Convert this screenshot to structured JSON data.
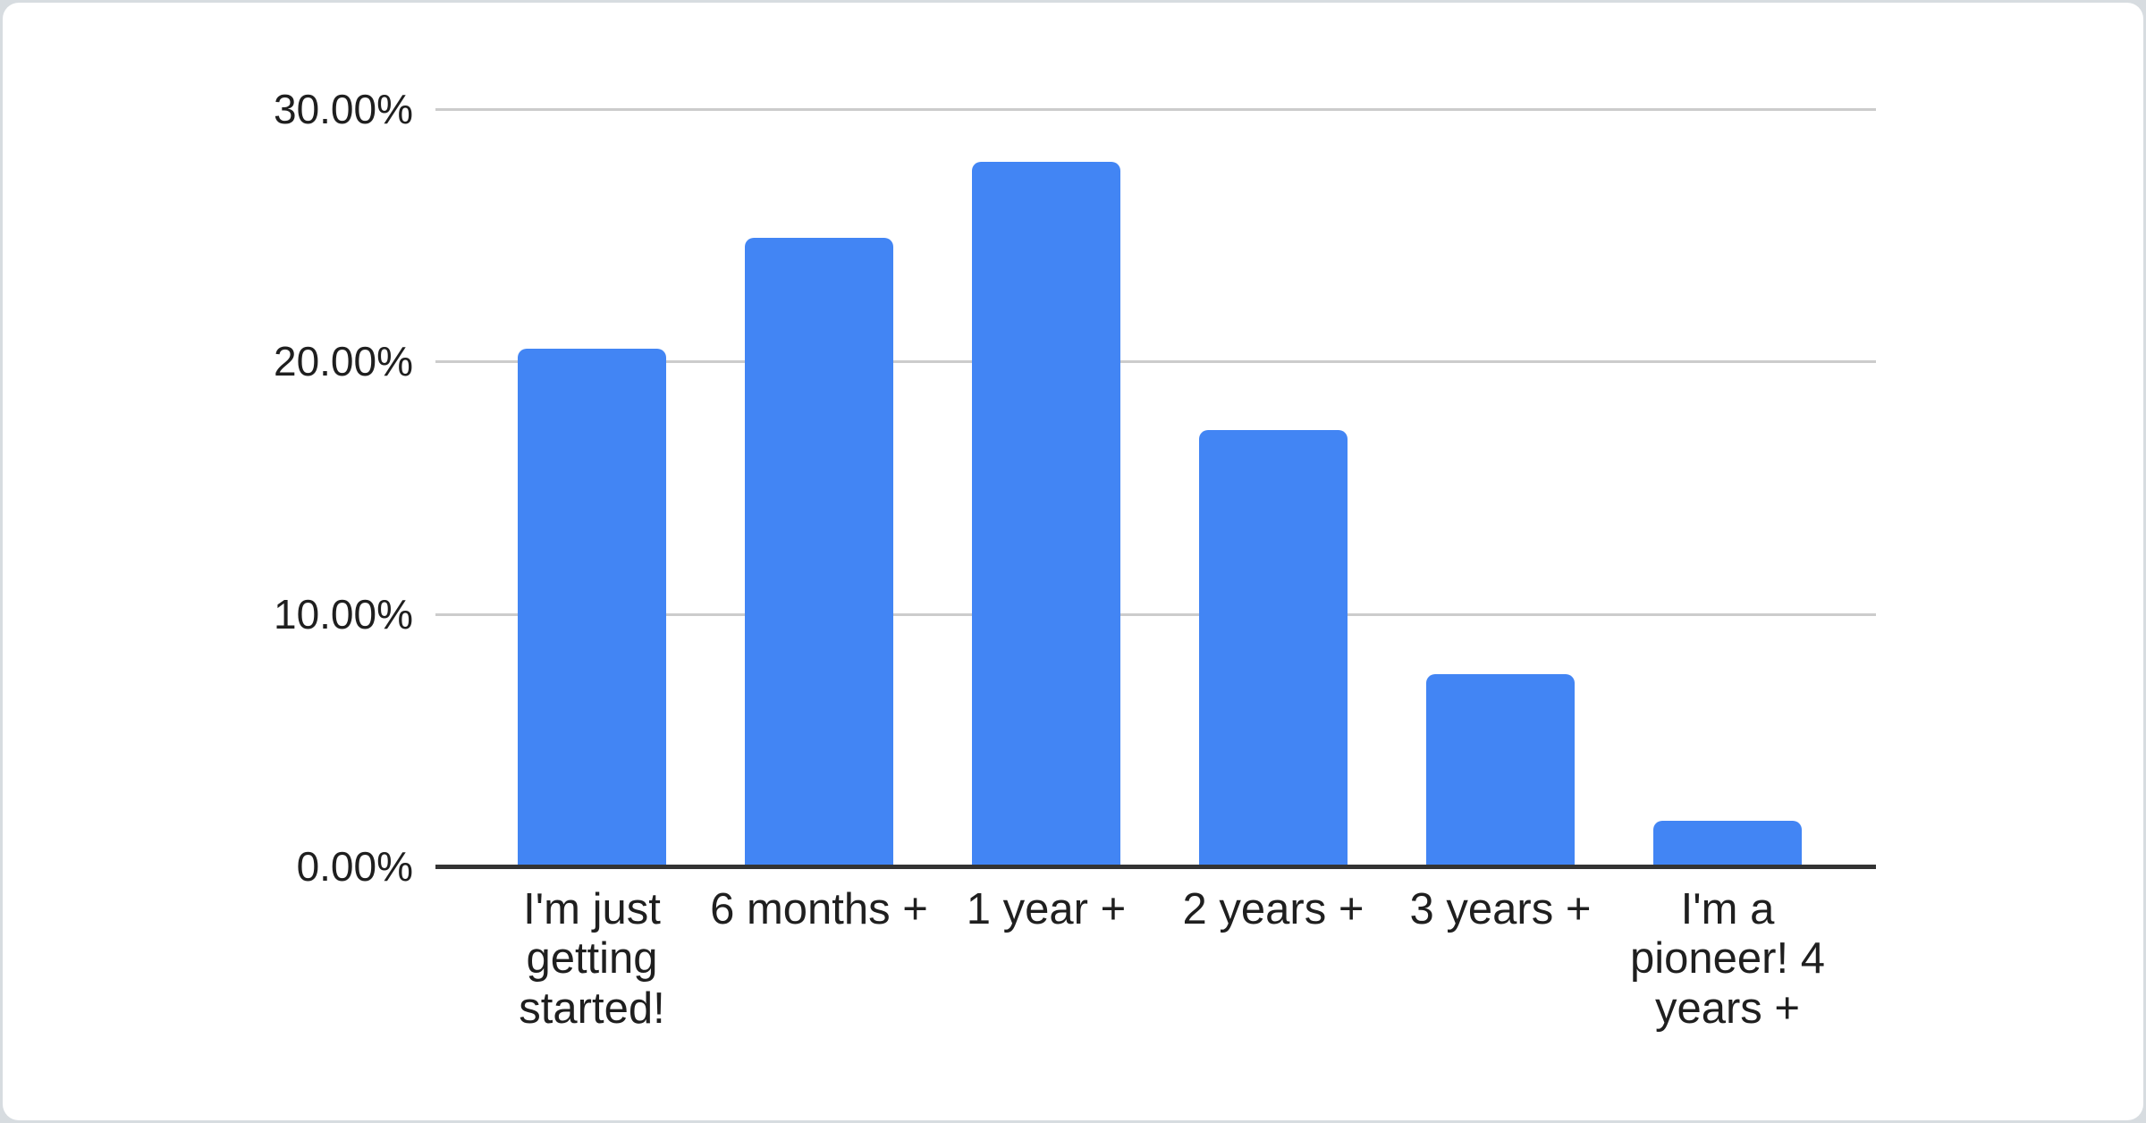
{
  "chart_data": {
    "type": "bar",
    "categories": [
      "I'm just getting started!",
      "6 months +",
      "1 year +",
      "2 years +",
      "3 years +",
      "I'm a pioneer! 4 years +"
    ],
    "values": [
      20.5,
      24.9,
      27.9,
      17.3,
      7.6,
      1.8
    ],
    "title": "",
    "xlabel": "",
    "ylabel": "",
    "ylim": [
      0,
      30
    ],
    "yticks": [
      {
        "value": 0,
        "label": "0.00%"
      },
      {
        "value": 10,
        "label": "10.00%"
      },
      {
        "value": 20,
        "label": "20.00%"
      },
      {
        "value": 30,
        "label": "30.00%"
      }
    ],
    "grid": true,
    "legend": "none",
    "bar_color": "#4285f4"
  },
  "colors": {
    "bar": "#4285f4",
    "gridline": "#cccccc",
    "axis": "#333333",
    "label": "#1f1f1f",
    "card_background": "#ffffff",
    "page_border": "#d7dce0"
  }
}
